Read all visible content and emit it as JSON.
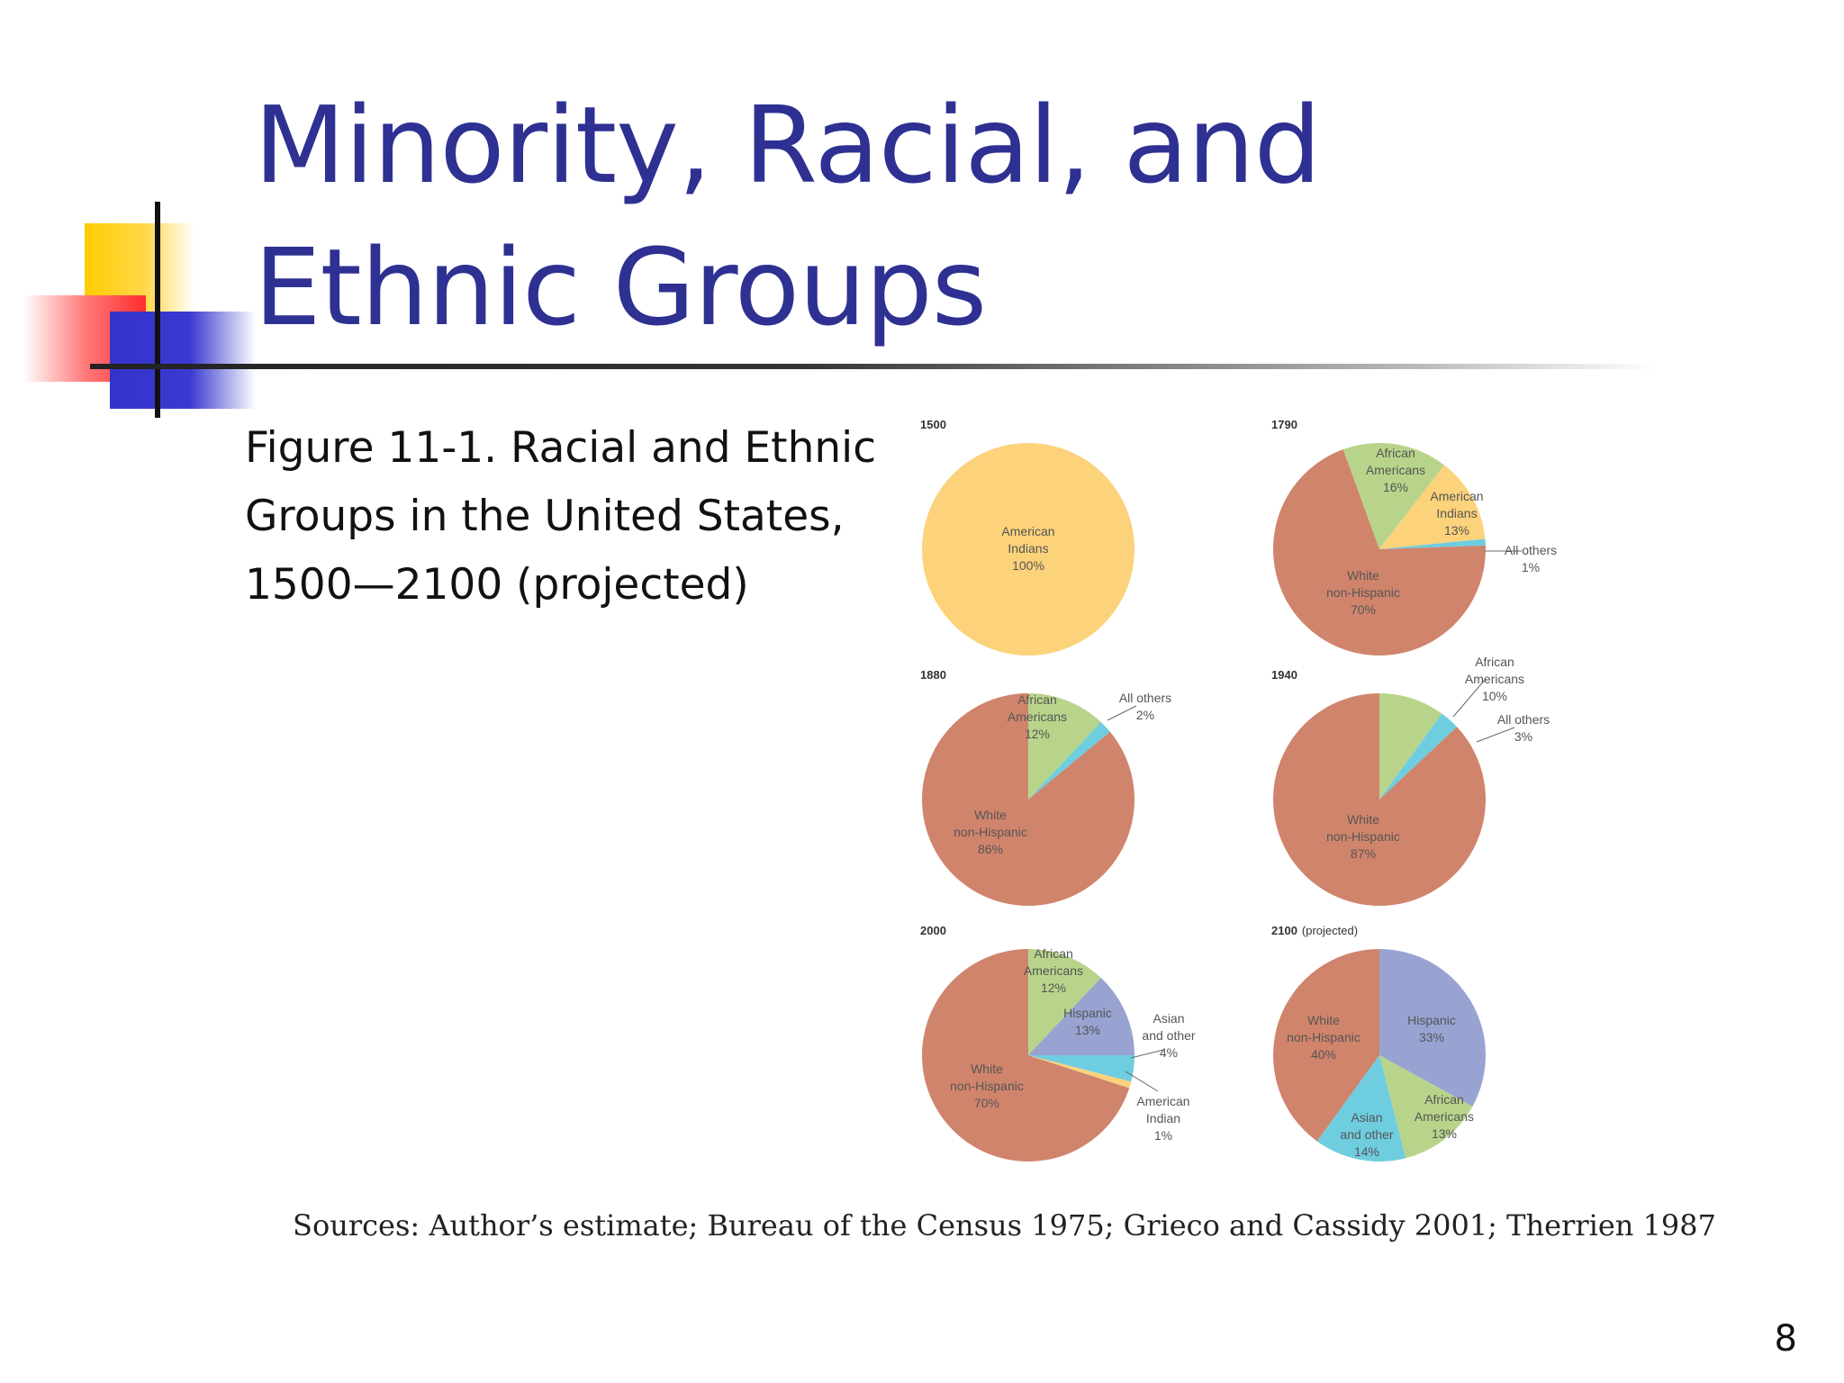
{
  "slide": {
    "title_line1": "Minority, Racial, and",
    "title_line2": "Ethnic Groups",
    "caption_line1": "Figure 11-1. Racial and Ethnic",
    "caption_line2": "Groups in the United States,",
    "caption_line3": "1500—2100 (projected)",
    "sources": "Sources: Author’s estimate; Bureau of the Census 1975; Grieco and Cassidy 2001; Therrien 1987",
    "page_number": "8"
  },
  "colors": {
    "title": "#2e3192",
    "white_non_hispanic": "#d0846c",
    "african_americans": "#b8d48a",
    "american_indians": "#fcd27a",
    "all_others": "#6fcde0",
    "hispanic": "#98a3d2",
    "asian_and_other": "#6fcde0"
  },
  "chart_data": [
    {
      "type": "pie",
      "title": "1500",
      "subtitle": "",
      "slices": [
        {
          "label": [
            "American",
            "Indians",
            "100%"
          ],
          "value": 100,
          "color": "#fcd27a"
        }
      ]
    },
    {
      "type": "pie",
      "title": "1790",
      "subtitle": "",
      "slices": [
        {
          "label": [
            "African",
            "Americans",
            "16%"
          ],
          "value": 16,
          "color": "#b8d48a"
        },
        {
          "label": [
            "American",
            "Indians",
            "13%"
          ],
          "value": 13,
          "color": "#fcd27a"
        },
        {
          "label": [
            "All others",
            "1%"
          ],
          "value": 1,
          "color": "#6fcde0"
        },
        {
          "label": [
            "White",
            "non-Hispanic",
            "70%"
          ],
          "value": 70,
          "color": "#d0846c"
        }
      ]
    },
    {
      "type": "pie",
      "title": "1880",
      "subtitle": "",
      "slices": [
        {
          "label": [
            "African",
            "Americans",
            "12%"
          ],
          "value": 12,
          "color": "#b8d48a"
        },
        {
          "label": [
            "All others",
            "2%"
          ],
          "value": 2,
          "color": "#6fcde0"
        },
        {
          "label": [
            "White",
            "non-Hispanic",
            "86%"
          ],
          "value": 86,
          "color": "#d0846c"
        }
      ]
    },
    {
      "type": "pie",
      "title": "1940",
      "subtitle": "",
      "slices": [
        {
          "label": [
            "African",
            "Americans",
            "10%"
          ],
          "value": 10,
          "color": "#b8d48a"
        },
        {
          "label": [
            "All others",
            "3%"
          ],
          "value": 3,
          "color": "#6fcde0"
        },
        {
          "label": [
            "White",
            "non-Hispanic",
            "87%"
          ],
          "value": 87,
          "color": "#d0846c"
        }
      ]
    },
    {
      "type": "pie",
      "title": "2000",
      "subtitle": "",
      "slices": [
        {
          "label": [
            "African",
            "Americans",
            "12%"
          ],
          "value": 12,
          "color": "#b8d48a"
        },
        {
          "label": [
            "Hispanic",
            "13%"
          ],
          "value": 13,
          "color": "#98a3d2"
        },
        {
          "label": [
            "Asian",
            "and other",
            "4%"
          ],
          "value": 4,
          "color": "#6fcde0"
        },
        {
          "label": [
            "American",
            "Indian",
            "1%"
          ],
          "value": 1,
          "color": "#fcd27a"
        },
        {
          "label": [
            "White",
            "non-Hispanic",
            "70%"
          ],
          "value": 70,
          "color": "#d0846c"
        }
      ]
    },
    {
      "type": "pie",
      "title": "2100",
      "subtitle": "(projected)",
      "slices": [
        {
          "label": [
            "Hispanic",
            "33%"
          ],
          "value": 33,
          "color": "#98a3d2"
        },
        {
          "label": [
            "African",
            "Americans",
            "13%"
          ],
          "value": 13,
          "color": "#b8d48a"
        },
        {
          "label": [
            "Asian",
            "and other",
            "14%"
          ],
          "value": 14,
          "color": "#6fcde0"
        },
        {
          "label": [
            "White",
            "non-Hispanic",
            "40%"
          ],
          "value": 40,
          "color": "#d0846c"
        }
      ]
    }
  ]
}
